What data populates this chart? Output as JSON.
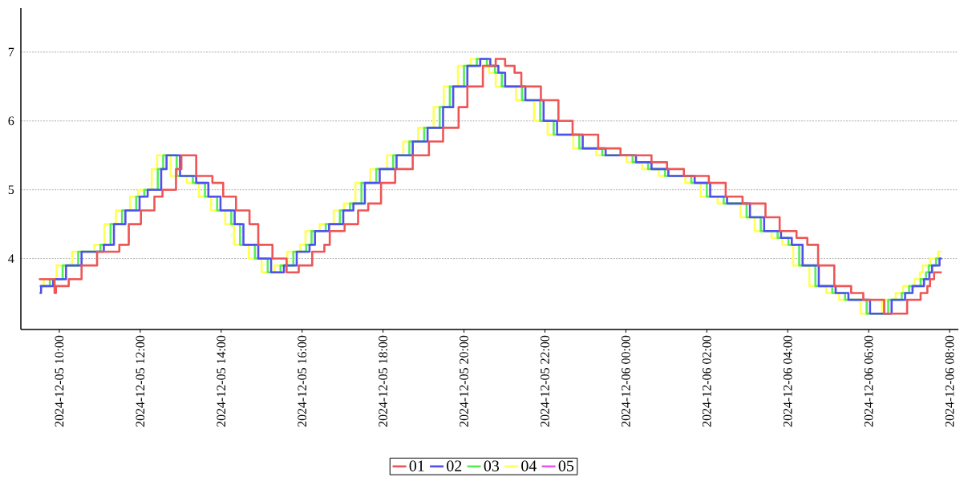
{
  "chart_data": {
    "type": "step",
    "marker": "none",
    "grid": "y",
    "legend": "bottom",
    "xlim": [
      "2024-12-05T09:03",
      "2024-12-06T08:13"
    ],
    "ylim": [
      2.97,
      7.64
    ],
    "xticks": [
      {
        "value": "2024-12-05T10:00",
        "label": "2024-12-05 10:00"
      },
      {
        "value": "2024-12-05T12:00",
        "label": "2024-12-05 12:00"
      },
      {
        "value": "2024-12-05T14:00",
        "label": "2024-12-05 14:00"
      },
      {
        "value": "2024-12-05T16:00",
        "label": "2024-12-05 16:00"
      },
      {
        "value": "2024-12-05T18:00",
        "label": "2024-12-05 18:00"
      },
      {
        "value": "2024-12-05T20:00",
        "label": "2024-12-05 20:00"
      },
      {
        "value": "2024-12-05T22:00",
        "label": "2024-12-05 22:00"
      },
      {
        "value": "2024-12-06T00:00",
        "label": "2024-12-06 00:00"
      },
      {
        "value": "2024-12-06T02:00",
        "label": "2024-12-06 02:00"
      },
      {
        "value": "2024-12-06T04:00",
        "label": "2024-12-06 04:00"
      },
      {
        "value": "2024-12-06T06:00",
        "label": "2024-12-06 06:00"
      },
      {
        "value": "2024-12-06T08:00",
        "label": "2024-12-06 08:00"
      }
    ],
    "yticks": [
      4,
      5,
      6,
      7
    ],
    "series": [
      {
        "name": "01",
        "color": "#ee5555",
        "x": [
          "2024-12-05T09:31",
          "2024-12-05T09:53",
          "2024-12-05T09:55",
          "2024-12-05T10:14",
          "2024-12-05T10:33",
          "2024-12-05T10:56",
          "2024-12-05T11:29",
          "2024-12-05T11:43",
          "2024-12-05T12:01",
          "2024-12-05T12:21",
          "2024-12-05T12:33",
          "2024-12-05T12:53",
          "2024-12-05T13:01",
          "2024-12-05T13:23",
          "2024-12-05T13:47",
          "2024-12-05T14:03",
          "2024-12-05T14:22",
          "2024-12-05T14:42",
          "2024-12-05T14:55",
          "2024-12-05T15:16",
          "2024-12-05T15:37",
          "2024-12-05T15:55",
          "2024-12-05T16:15",
          "2024-12-05T16:33",
          "2024-12-05T16:41",
          "2024-12-05T17:03",
          "2024-12-05T17:23",
          "2024-12-05T17:38",
          "2024-12-05T17:57",
          "2024-12-05T18:18",
          "2024-12-05T18:44",
          "2024-12-05T19:08",
          "2024-12-05T19:29",
          "2024-12-05T19:52",
          "2024-12-05T20:05",
          "2024-12-05T20:28",
          "2024-12-05T20:47",
          "2024-12-05T21:01",
          "2024-12-05T21:15",
          "2024-12-05T21:25",
          "2024-12-05T21:54",
          "2024-12-05T22:20",
          "2024-12-05T22:41",
          "2024-12-05T23:19",
          "2024-12-05T23:52",
          "2024-12-06T00:38",
          "2024-12-06T01:01",
          "2024-12-06T01:26",
          "2024-12-06T02:03",
          "2024-12-06T02:28",
          "2024-12-06T02:53",
          "2024-12-06T03:27",
          "2024-12-06T03:48",
          "2024-12-06T04:13",
          "2024-12-06T04:29",
          "2024-12-06T04:45",
          "2024-12-06T05:09",
          "2024-12-06T05:34",
          "2024-12-06T05:52",
          "2024-12-06T06:23",
          "2024-12-06T06:57",
          "2024-12-06T07:17",
          "2024-12-06T07:27",
          "2024-12-06T07:31",
          "2024-12-06T07:37",
          "2024-12-06T07:47"
        ],
        "values": [
          3.7,
          3.5,
          3.6,
          3.7,
          3.9,
          4.1,
          4.2,
          4.5,
          4.7,
          4.9,
          5.0,
          5.3,
          5.5,
          5.2,
          5.1,
          4.9,
          4.7,
          4.5,
          4.2,
          4.0,
          3.8,
          3.9,
          4.1,
          4.2,
          4.4,
          4.5,
          4.7,
          4.8,
          5.1,
          5.3,
          5.5,
          5.7,
          5.9,
          6.2,
          6.5,
          6.8,
          6.9,
          6.8,
          6.7,
          6.5,
          6.3,
          6.0,
          5.8,
          5.6,
          5.5,
          5.4,
          5.3,
          5.2,
          5.1,
          4.9,
          4.8,
          4.6,
          4.4,
          4.3,
          4.2,
          3.9,
          3.6,
          3.5,
          3.4,
          3.2,
          3.4,
          3.5,
          3.6,
          3.7,
          3.8,
          3.8
        ]
      },
      {
        "name": "02",
        "color": "#5050ee",
        "x": [
          "2024-12-05T09:32",
          "2024-12-05T09:33",
          "2024-12-05T09:51",
          "2024-12-05T10:10",
          "2024-12-05T10:33",
          "2024-12-05T11:06",
          "2024-12-05T11:21",
          "2024-12-05T11:38",
          "2024-12-05T11:59",
          "2024-12-05T12:11",
          "2024-12-05T12:31",
          "2024-12-05T12:39",
          "2024-12-05T12:59",
          "2024-12-05T13:23",
          "2024-12-05T13:41",
          "2024-12-05T13:59",
          "2024-12-05T14:20",
          "2024-12-05T14:33",
          "2024-12-05T14:55",
          "2024-12-05T15:14",
          "2024-12-05T15:33",
          "2024-12-05T15:52",
          "2024-12-05T16:11",
          "2024-12-05T16:19",
          "2024-12-05T16:40",
          "2024-12-05T17:01",
          "2024-12-05T17:16",
          "2024-12-05T17:33",
          "2024-12-05T17:55",
          "2024-12-05T18:20",
          "2024-12-05T18:44",
          "2024-12-05T19:06",
          "2024-12-05T19:29",
          "2024-12-05T19:44",
          "2024-12-05T20:05",
          "2024-12-05T20:24",
          "2024-12-05T20:39",
          "2024-12-05T20:51",
          "2024-12-05T21:01",
          "2024-12-05T21:31",
          "2024-12-05T21:58",
          "2024-12-05T22:18",
          "2024-12-05T22:56",
          "2024-12-05T23:30",
          "2024-12-06T00:15",
          "2024-12-06T00:38",
          "2024-12-06T01:03",
          "2024-12-06T01:42",
          "2024-12-06T02:05",
          "2024-12-06T02:30",
          "2024-12-06T03:04",
          "2024-12-06T03:25",
          "2024-12-06T03:50",
          "2024-12-06T04:06",
          "2024-12-06T04:22",
          "2024-12-06T04:46",
          "2024-12-06T05:11",
          "2024-12-06T05:30",
          "2024-12-06T06:02",
          "2024-12-06T06:34",
          "2024-12-06T06:54",
          "2024-12-06T07:05",
          "2024-12-06T07:22",
          "2024-12-06T07:30",
          "2024-12-06T07:34",
          "2024-12-06T07:45",
          "2024-12-06T07:47"
        ],
        "values": [
          3.5,
          3.6,
          3.7,
          3.9,
          4.1,
          4.2,
          4.5,
          4.7,
          4.9,
          5.0,
          5.3,
          5.5,
          5.2,
          5.1,
          4.9,
          4.7,
          4.5,
          4.2,
          4.0,
          3.8,
          3.9,
          4.1,
          4.2,
          4.4,
          4.5,
          4.7,
          4.8,
          5.1,
          5.3,
          5.5,
          5.7,
          5.9,
          6.2,
          6.5,
          6.8,
          6.9,
          6.8,
          6.7,
          6.5,
          6.3,
          6.0,
          5.8,
          5.6,
          5.5,
          5.4,
          5.3,
          5.2,
          5.1,
          4.9,
          4.8,
          4.6,
          4.4,
          4.3,
          4.2,
          3.9,
          3.6,
          3.5,
          3.4,
          3.2,
          3.4,
          3.5,
          3.6,
          3.7,
          3.8,
          3.9,
          4.0,
          4.0
        ]
      },
      {
        "name": "03",
        "color": "#55ee55",
        "x": [
          "2024-12-05T09:32",
          "2024-12-05T09:46",
          "2024-12-05T10:05",
          "2024-12-05T10:28",
          "2024-12-05T11:01",
          "2024-12-05T11:16",
          "2024-12-05T11:33",
          "2024-12-05T11:54",
          "2024-12-05T12:06",
          "2024-12-05T12:26",
          "2024-12-05T12:34",
          "2024-12-05T12:54",
          "2024-12-05T13:18",
          "2024-12-05T13:36",
          "2024-12-05T13:54",
          "2024-12-05T14:15",
          "2024-12-05T14:28",
          "2024-12-05T14:50",
          "2024-12-05T15:09",
          "2024-12-05T15:28",
          "2024-12-05T15:47",
          "2024-12-05T16:06",
          "2024-12-05T16:14",
          "2024-12-05T16:35",
          "2024-12-05T16:56",
          "2024-12-05T17:11",
          "2024-12-05T17:28",
          "2024-12-05T17:50",
          "2024-12-05T18:15",
          "2024-12-05T18:39",
          "2024-12-05T19:01",
          "2024-12-05T19:24",
          "2024-12-05T19:39",
          "2024-12-05T20:00",
          "2024-12-05T20:19",
          "2024-12-05T20:34",
          "2024-12-05T20:46",
          "2024-12-05T20:56",
          "2024-12-05T21:26",
          "2024-12-05T21:53",
          "2024-12-05T22:13",
          "2024-12-05T22:51",
          "2024-12-05T23:25",
          "2024-12-06T00:10",
          "2024-12-06T00:33",
          "2024-12-06T00:58",
          "2024-12-06T01:37",
          "2024-12-06T02:00",
          "2024-12-06T02:25",
          "2024-12-06T02:59",
          "2024-12-06T03:20",
          "2024-12-06T03:45",
          "2024-12-06T04:01",
          "2024-12-06T04:17",
          "2024-12-06T04:41",
          "2024-12-06T05:06",
          "2024-12-06T05:25",
          "2024-12-06T05:57",
          "2024-12-06T06:29",
          "2024-12-06T06:49",
          "2024-12-06T07:00",
          "2024-12-06T07:17",
          "2024-12-06T07:25",
          "2024-12-06T07:29",
          "2024-12-06T07:40",
          "2024-12-06T07:47"
        ],
        "values": [
          3.6,
          3.7,
          3.9,
          4.1,
          4.2,
          4.5,
          4.7,
          4.9,
          5.0,
          5.3,
          5.5,
          5.2,
          5.1,
          4.9,
          4.7,
          4.5,
          4.2,
          4.0,
          3.8,
          3.9,
          4.1,
          4.2,
          4.4,
          4.5,
          4.7,
          4.8,
          5.1,
          5.3,
          5.5,
          5.7,
          5.9,
          6.2,
          6.5,
          6.8,
          6.9,
          6.8,
          6.7,
          6.5,
          6.3,
          6.0,
          5.8,
          5.6,
          5.5,
          5.4,
          5.3,
          5.2,
          5.1,
          4.9,
          4.8,
          4.6,
          4.4,
          4.3,
          4.2,
          3.9,
          3.6,
          3.5,
          3.4,
          3.2,
          3.4,
          3.5,
          3.6,
          3.7,
          3.8,
          3.9,
          4.0,
          4.0
        ]
      },
      {
        "name": "04",
        "color": "#ffff55",
        "x": [
          "2024-12-05T09:32",
          "2024-12-05T09:37",
          "2024-12-05T09:56",
          "2024-12-05T10:19",
          "2024-12-05T10:52",
          "2024-12-05T11:07",
          "2024-12-05T11:24",
          "2024-12-05T11:45",
          "2024-12-05T11:57",
          "2024-12-05T12:17",
          "2024-12-05T12:25",
          "2024-12-05T12:45",
          "2024-12-05T13:09",
          "2024-12-05T13:27",
          "2024-12-05T13:45",
          "2024-12-05T14:06",
          "2024-12-05T14:19",
          "2024-12-05T14:41",
          "2024-12-05T15:00",
          "2024-12-05T15:19",
          "2024-12-05T15:38",
          "2024-12-05T15:57",
          "2024-12-05T16:05",
          "2024-12-05T16:26",
          "2024-12-05T16:47",
          "2024-12-05T17:02",
          "2024-12-05T17:19",
          "2024-12-05T17:41",
          "2024-12-05T18:06",
          "2024-12-05T18:30",
          "2024-12-05T18:52",
          "2024-12-05T19:15",
          "2024-12-05T19:30",
          "2024-12-05T19:51",
          "2024-12-05T20:10",
          "2024-12-05T20:25",
          "2024-12-05T20:37",
          "2024-12-05T20:47",
          "2024-12-05T21:17",
          "2024-12-05T21:44",
          "2024-12-05T22:04",
          "2024-12-05T22:42",
          "2024-12-05T23:16",
          "2024-12-06T00:01",
          "2024-12-06T00:24",
          "2024-12-06T00:49",
          "2024-12-06T01:28",
          "2024-12-06T01:51",
          "2024-12-06T02:16",
          "2024-12-06T02:50",
          "2024-12-06T03:11",
          "2024-12-06T03:36",
          "2024-12-06T03:52",
          "2024-12-06T04:08",
          "2024-12-06T04:32",
          "2024-12-06T04:57",
          "2024-12-06T05:16",
          "2024-12-06T05:48",
          "2024-12-06T06:20",
          "2024-12-06T06:40",
          "2024-12-06T06:51",
          "2024-12-06T07:08",
          "2024-12-06T07:16",
          "2024-12-06T07:20",
          "2024-12-06T07:31",
          "2024-12-06T07:43",
          "2024-12-06T07:47"
        ],
        "values": [
          3.6,
          3.7,
          3.9,
          4.1,
          4.2,
          4.5,
          4.7,
          4.9,
          5.0,
          5.3,
          5.5,
          5.2,
          5.1,
          4.9,
          4.7,
          4.5,
          4.2,
          4.0,
          3.8,
          3.9,
          4.1,
          4.2,
          4.4,
          4.5,
          4.7,
          4.8,
          5.1,
          5.3,
          5.5,
          5.7,
          5.9,
          6.2,
          6.5,
          6.8,
          6.9,
          6.8,
          6.7,
          6.5,
          6.3,
          6.0,
          5.8,
          5.6,
          5.5,
          5.4,
          5.3,
          5.2,
          5.1,
          4.9,
          4.8,
          4.6,
          4.4,
          4.3,
          4.2,
          3.9,
          3.6,
          3.5,
          3.4,
          3.2,
          3.4,
          3.5,
          3.6,
          3.7,
          3.8,
          3.9,
          4.0,
          4.1,
          4.1
        ]
      },
      {
        "name": "05",
        "color": "#ee55ee"
      }
    ]
  }
}
